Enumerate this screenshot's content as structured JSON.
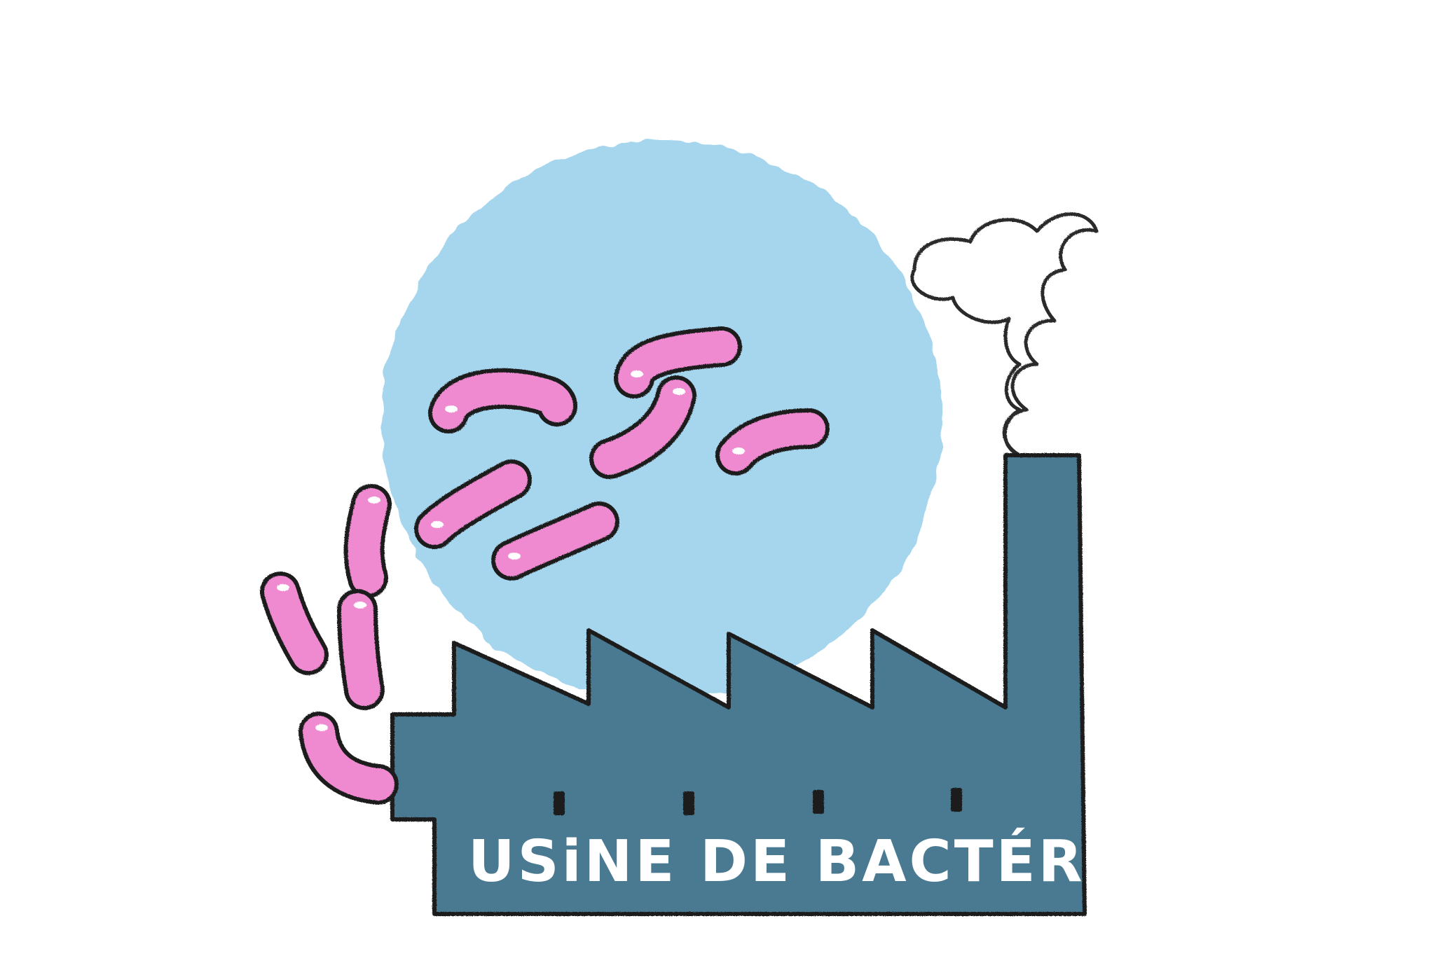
{
  "illustration": {
    "factory_label": "USiNE DE BACTÉRiES",
    "colors": {
      "background": "#ffffff",
      "sky_circle": "#a6d6ee",
      "factory": "#4a7a92",
      "outline": "#1e1e1e",
      "bacteria": "#f08ad0",
      "bacteria_highlight": "#ffffff",
      "smoke": "#ffffff"
    },
    "icons": [
      "bacterium-icon",
      "factory-icon",
      "smoke-icon",
      "window-icon"
    ]
  }
}
